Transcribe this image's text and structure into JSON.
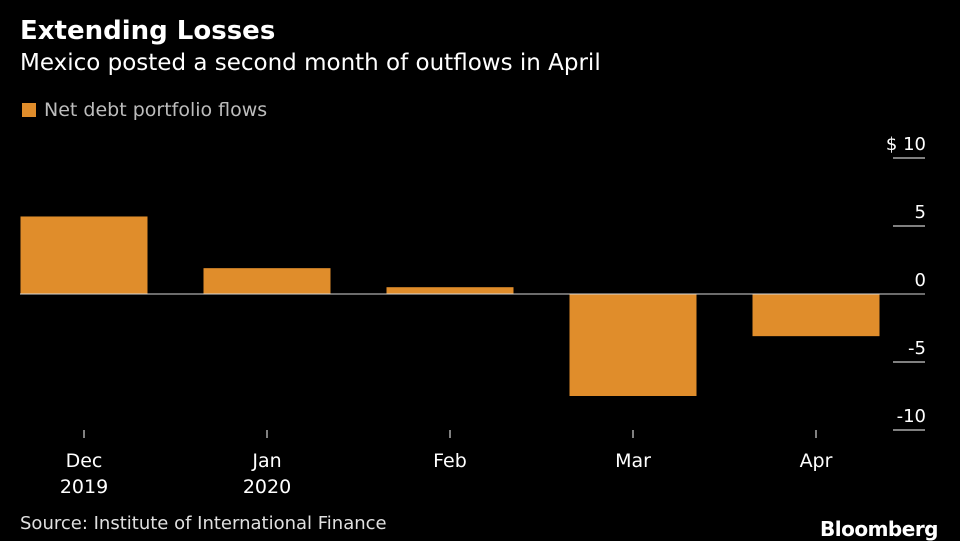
{
  "header": {
    "title": "Extending Losses",
    "subtitle": "Mexico posted a second month of outflows in April"
  },
  "footer": {
    "source": "Source: Institute of International Finance",
    "brand": "Bloomberg"
  },
  "colors": {
    "bar": "#e08d2b",
    "background": "#000000",
    "zero_line": "#d9d9d9",
    "grid_tick": "#ffffff",
    "axis_text": "#ffffff"
  },
  "chart_data": {
    "type": "bar",
    "categories": [
      [
        "Dec",
        "2019"
      ],
      [
        "Jan",
        "2020"
      ],
      [
        "Feb",
        ""
      ],
      [
        "Mar",
        ""
      ],
      [
        "Apr",
        ""
      ]
    ],
    "series": [
      {
        "name": "Net debt portfolio flows",
        "values": [
          5.7,
          1.9,
          0.5,
          -7.5,
          -3.1
        ]
      }
    ],
    "y_ticks": [
      "$ 10",
      "5",
      "0",
      "-5",
      "-10"
    ],
    "y_tick_values": [
      10,
      5,
      0,
      -5,
      -10
    ],
    "ylim": [
      -10,
      10
    ],
    "y_axis_position": "right",
    "legend_position": "top-left",
    "grid": false
  }
}
